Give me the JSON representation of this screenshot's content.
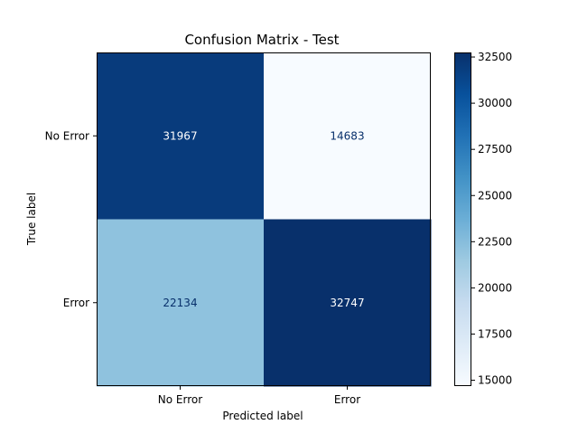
{
  "chart_data": {
    "type": "heatmap",
    "title": "Confusion Matrix - Test",
    "xlabel": "Predicted label",
    "ylabel": "True label",
    "x_categories": [
      "No Error",
      "Error"
    ],
    "y_categories": [
      "No Error",
      "Error"
    ],
    "values": [
      [
        31967,
        14683
      ],
      [
        22134,
        32747
      ]
    ],
    "colormap": "Blues",
    "color_range": [
      14683,
      32747
    ],
    "colorbar_ticks": [
      15000,
      17500,
      20000,
      22500,
      25000,
      27500,
      30000,
      32500
    ],
    "colors": {
      "cell_low": "#f7fbff",
      "cell_mid": "#91c3de",
      "cell_high": "#08306b",
      "text_on_dark": "#ffffff",
      "text_on_light": "#08306b",
      "axis": "#000000"
    }
  }
}
